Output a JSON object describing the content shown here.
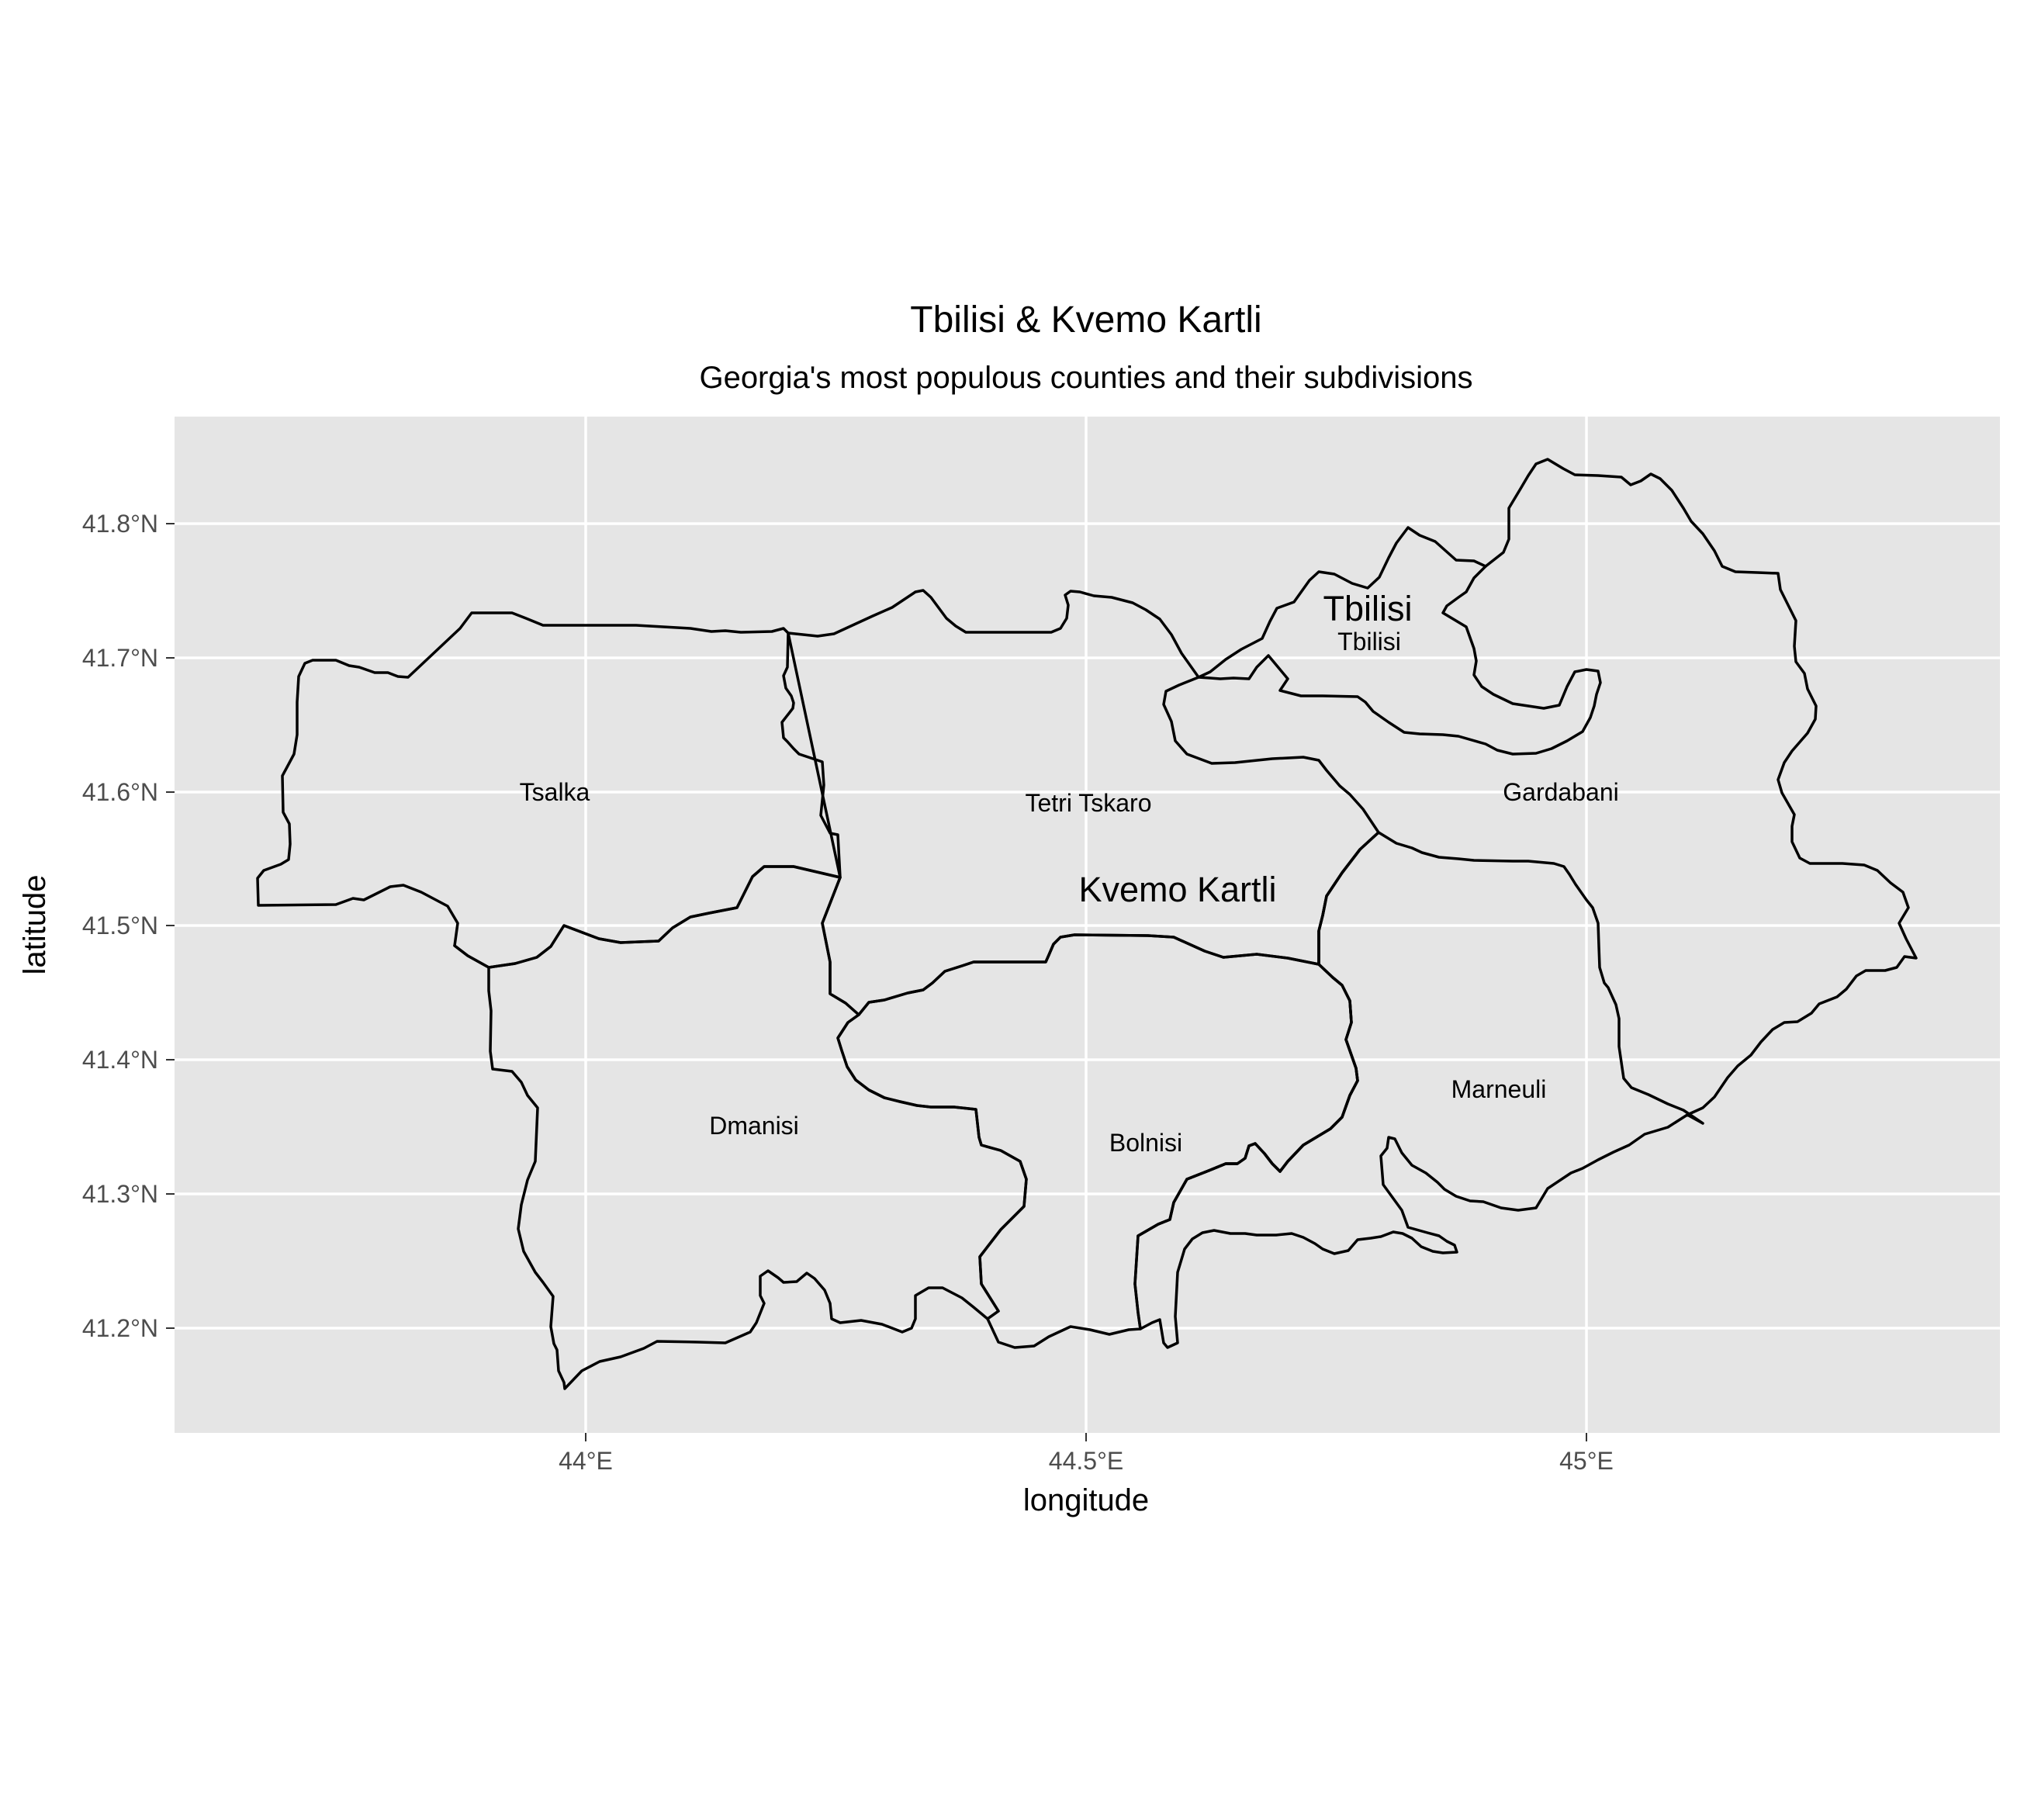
{
  "map": {
    "title": "Tbilisi & Kvemo Kartli",
    "subtitle": "Georgia's most populous counties and their subdivisions",
    "x_axis_title": "longitude",
    "y_axis_title": "latitude",
    "x_tick_labels": [
      "44°E",
      "44.5°E",
      "45°E"
    ],
    "y_tick_labels": [
      "41.8°N",
      "41.7°N",
      "41.6°N",
      "41.5°N",
      "41.4°N",
      "41.3°N",
      "41.2°N"
    ],
    "regions": [
      "Tbilisi",
      "Kvemo Kartli"
    ],
    "districts": [
      "Tbilisi",
      "Tsalka",
      "Tetri Tskaro",
      "Gardabani",
      "Dmanisi",
      "Bolnisi",
      "Marneuli"
    ],
    "colors": {
      "panel": "#e5e5e5",
      "grid": "#ffffff",
      "border": "#000000",
      "tick_text": "#4d4d4d"
    }
  }
}
